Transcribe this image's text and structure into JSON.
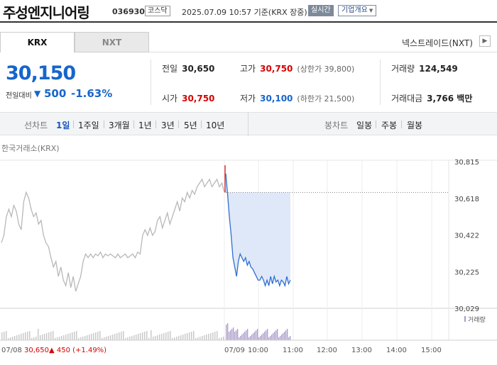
{
  "header": {
    "name": "주성엔지니어링",
    "code": "036930",
    "market_badge": "코스닥",
    "datetime": "2025.07.09 10:57 기준(KRX 장중)",
    "realtime_label": "실시간",
    "overview_label": "기업개요",
    "overview_arrow": "▼"
  },
  "tabs": {
    "krx": "KRX",
    "nxt": "NXT",
    "nxt_trade_label": "넥스트레이드(NXT)",
    "nxt_arrow": "▶"
  },
  "quote": {
    "price": "30,150",
    "change_label": "전일대비",
    "change_arrow": "▼",
    "change": "500",
    "change_pct": "-1.63%",
    "prev_close_label": "전일",
    "prev_close": "30,650",
    "open_label": "시가",
    "open": "30,750",
    "high_label": "고가",
    "high": "30,750",
    "upper_limit": "(상한가 39,800)",
    "low_label": "저가",
    "low": "30,100",
    "lower_limit": "(하한가 21,500)",
    "volume_label": "거래량",
    "volume": "124,549",
    "amount_label": "거래대금",
    "amount": "3,766 백만"
  },
  "period_bar": {
    "line_label": "선차트",
    "line_periods": [
      "1일",
      "1주일",
      "3개월",
      "1년",
      "3년",
      "5년",
      "10년"
    ],
    "active_period": "1일",
    "candle_label": "봉차트",
    "candle_periods": [
      "일봉",
      "주봉",
      "월봉"
    ]
  },
  "exchange_label": "한국거래소(KRX)",
  "chart_data": {
    "type": "line",
    "y_ticks": [
      "30,815",
      "30,618",
      "30,422",
      "30,225",
      "30,029"
    ],
    "ylim": [
      30029,
      30815
    ],
    "reference_price": 30650,
    "prev_day_label": "07/08",
    "prev_day_close": "30,650",
    "prev_day_change": "▲ 450 (+1.49%)",
    "x_ticks": [
      "07/09",
      "10:00",
      "11:00",
      "12:00",
      "13:00",
      "14:00",
      "15:00"
    ],
    "volume_label": "거래량",
    "colors": {
      "prev_day": "#b8b8b8",
      "today": "#2f6fd0",
      "fill": "#dfe8f8",
      "open_mark": "#e02020"
    },
    "prev_day_series": [
      30380,
      30420,
      30520,
      30560,
      30520,
      30580,
      30550,
      30480,
      30450,
      30600,
      30650,
      30620,
      30560,
      30520,
      30540,
      30480,
      30500,
      30420,
      30380,
      30360,
      30300,
      30250,
      30280,
      30200,
      30250,
      30180,
      30150,
      30220,
      30140,
      30200,
      30120,
      30160,
      30200,
      30280,
      30320,
      30300,
      30320,
      30300,
      30320,
      30310,
      30330,
      30300,
      30320,
      30310,
      30320,
      30310,
      30300,
      30320,
      30300,
      30310,
      30320,
      30300,
      30310,
      30320,
      30300,
      30330,
      30320,
      30420,
      30450,
      30420,
      30460,
      30420,
      30440,
      30500,
      30520,
      30460,
      30500,
      30540,
      30480,
      30520,
      30560,
      30600,
      30550,
      30620,
      30600,
      30650,
      30620,
      30660,
      30640,
      30680,
      30700,
      30720,
      30680,
      30700,
      30720,
      30680,
      30700,
      30720,
      30680,
      30700,
      30650
    ],
    "today_series": [
      30750,
      30640,
      30520,
      30420,
      30300,
      30250,
      30200,
      30280,
      30320,
      30300,
      30280,
      30300,
      30260,
      30280,
      30250,
      30240,
      30220,
      30200,
      30180,
      30180,
      30200,
      30180,
      30150,
      30180,
      30150,
      30200,
      30160,
      30200,
      30170,
      30180,
      30150,
      30180,
      30170,
      30150,
      30200,
      30160,
      30180
    ]
  }
}
